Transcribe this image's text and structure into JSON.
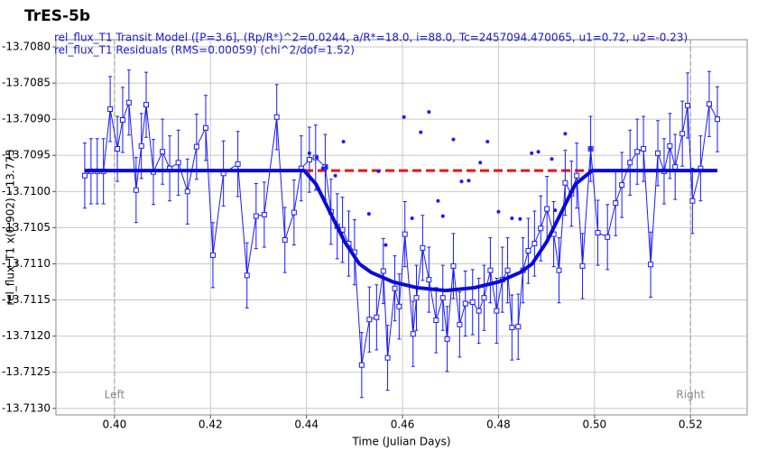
{
  "chart_data": {
    "type": "line",
    "title": "TrES-5b",
    "x_label": "Time (Julian Days)",
    "y_label": "rel_flux_T1 x(0.902) - 13.775",
    "xlim": [
      0.3878,
      0.5318
    ],
    "ylim": [
      -13.71309,
      -13.7079
    ],
    "xticks": [
      {
        "value": 0.4,
        "label": "0.40"
      },
      {
        "value": 0.42,
        "label": "0.42"
      },
      {
        "value": 0.44,
        "label": "0.44"
      },
      {
        "value": 0.46,
        "label": "0.46"
      },
      {
        "value": 0.48,
        "label": "0.48"
      },
      {
        "value": 0.5,
        "label": "0.50"
      },
      {
        "value": 0.52,
        "label": "0.52"
      }
    ],
    "yticks": [
      {
        "value": -13.708,
        "label": "-13.7080"
      },
      {
        "value": -13.7085,
        "label": "-13.7085"
      },
      {
        "value": -13.709,
        "label": "-13.7090"
      },
      {
        "value": -13.7095,
        "label": "-13.7095"
      },
      {
        "value": -13.71,
        "label": "-13.7100"
      },
      {
        "value": -13.7105,
        "label": "-13.7105"
      },
      {
        "value": -13.711,
        "label": "-13.7110"
      },
      {
        "value": -13.7115,
        "label": "-13.7115"
      },
      {
        "value": -13.712,
        "label": "-13.7120"
      },
      {
        "value": -13.7125,
        "label": "-13.7125"
      },
      {
        "value": -13.713,
        "label": "-13.7130"
      }
    ],
    "grid": true,
    "markers": [
      {
        "label": "Left",
        "x": 0.4
      },
      {
        "label": "Right",
        "x": 0.52
      }
    ],
    "series": [
      {
        "style": "points-errorbars",
        "color": "#1a1aff",
        "x": [
          0.3938,
          0.3951,
          0.3964,
          0.3977,
          0.3991,
          0.4006,
          0.4017,
          0.403,
          0.4045,
          0.4056,
          0.4066,
          0.4081,
          0.41,
          0.4115,
          0.4133,
          0.4152,
          0.4171,
          0.419,
          0.4205,
          0.4227,
          0.4257,
          0.4276,
          0.4295,
          0.4312,
          0.4338,
          0.4355,
          0.4374,
          0.4389,
          0.4406,
          0.4419,
          0.4439,
          0.4451,
          0.4464,
          0.4475,
          0.4488,
          0.45,
          0.4515,
          0.4531,
          0.4546,
          0.456,
          0.4569,
          0.4584,
          0.4593,
          0.4605,
          0.4622,
          0.4629,
          0.4642,
          0.4655,
          0.467,
          0.4684,
          0.4693,
          0.4706,
          0.4719,
          0.4731,
          0.4746,
          0.4759,
          0.477,
          0.4783,
          0.4796,
          0.4808,
          0.4819,
          0.4828,
          0.4841,
          0.4851,
          0.4862,
          0.4875,
          0.4888,
          0.4901,
          0.4915,
          0.4926,
          0.4939,
          0.4952,
          0.4963,
          0.4975,
          0.4992,
          0.5007,
          0.5027,
          0.5044,
          0.5057,
          0.5074,
          0.5089,
          0.5102,
          0.5117,
          0.5132,
          0.5145,
          0.5157,
          0.5168,
          0.5183,
          0.5194,
          0.5204,
          0.5221,
          0.5239,
          0.5256
        ],
        "values": [
          -13.70978,
          -13.70972,
          -13.70972,
          -13.70972,
          -13.70886,
          -13.70941,
          -13.70901,
          -13.70877,
          -13.70998,
          -13.70937,
          -13.7088,
          -13.70973,
          -13.70945,
          -13.70968,
          -13.7096,
          -13.71,
          -13.70938,
          -13.70912,
          -13.71088,
          -13.70975,
          -13.70962,
          -13.71116,
          -13.71034,
          -13.71032,
          -13.70897,
          -13.71067,
          -13.71029,
          -13.70968,
          -13.70956,
          -13.70953,
          -13.70966,
          -13.71028,
          -13.71048,
          -13.71053,
          -13.71072,
          -13.71084,
          -13.7124,
          -13.71177,
          -13.71174,
          -13.7111,
          -13.7123,
          -13.71134,
          -13.71159,
          -13.71059,
          -13.71197,
          -13.71147,
          -13.71078,
          -13.71122,
          -13.71178,
          -13.71147,
          -13.71204,
          -13.71103,
          -13.71184,
          -13.71155,
          -13.71153,
          -13.71165,
          -13.71147,
          -13.71109,
          -13.71165,
          -13.71122,
          -13.71109,
          -13.71188,
          -13.71187,
          -13.71109,
          -13.71082,
          -13.71072,
          -13.71051,
          -13.71024,
          -13.71059,
          -13.71109,
          -13.70988,
          -13.71003,
          -13.70978,
          -13.71103,
          -13.70941,
          -13.71057,
          -13.71063,
          -13.71016,
          -13.70991,
          -13.7096,
          -13.70945,
          -13.70941,
          -13.71101,
          -13.70947,
          -13.70972,
          -13.70937,
          -13.70966,
          -13.7092,
          -13.70881,
          -13.71013,
          -13.70968,
          -13.70879,
          -13.709
        ],
        "errors": [
          0.00045,
          0.00045,
          0.00045,
          0.00045,
          0.00045,
          0.00045,
          0.00045,
          0.00045,
          0.00045,
          0.00045,
          0.00045,
          0.00045,
          0.00045,
          0.00045,
          0.00045,
          0.00045,
          0.00045,
          0.00045,
          0.00045,
          0.00045,
          0.00045,
          0.00045,
          0.00045,
          0.00045,
          0.00045,
          0.00045,
          0.00045,
          0.00045,
          0.00045,
          0.00045,
          0.00045,
          0.00045,
          0.00045,
          0.00045,
          0.00045,
          0.00045,
          0.00045,
          0.00045,
          0.00045,
          0.00045,
          0.00045,
          0.00045,
          0.00045,
          0.00045,
          0.00045,
          0.00045,
          0.00045,
          0.00045,
          0.00045,
          0.00045,
          0.00045,
          0.00045,
          0.00045,
          0.00045,
          0.00045,
          0.00045,
          0.00045,
          0.00045,
          0.00045,
          0.00045,
          0.00045,
          0.00045,
          0.00045,
          0.00045,
          0.00045,
          0.00045,
          0.00045,
          0.00045,
          0.00045,
          0.00045,
          0.00045,
          0.00045,
          0.00045,
          0.00045,
          0.00045,
          0.00045,
          0.00045,
          0.00045,
          0.00045,
          0.00045,
          0.00045,
          0.00045,
          0.00045,
          0.00045,
          0.00045,
          0.00045,
          0.00045,
          0.00045,
          0.00045,
          0.00045,
          0.00045,
          0.00045,
          0.00045
        ]
      },
      {
        "name": "rel_flux_T1 Transit Model ([P=3.6], (Rp/R*)^2=0.0244, a/R*=18.0, i=88.0, Tc=2457094.470065, u1=0.72, u2=-0.23)",
        "style": "thick-line",
        "color": "#0a0ad8",
        "x": [
          0.3938,
          0.4395,
          0.442,
          0.445,
          0.448,
          0.451,
          0.4535,
          0.458,
          0.463,
          0.469,
          0.475,
          0.48,
          0.4845,
          0.487,
          0.49,
          0.493,
          0.496,
          0.4995,
          0.5256
        ],
        "values": [
          -13.70971,
          -13.70971,
          -13.7099,
          -13.7103,
          -13.7107,
          -13.711,
          -13.71112,
          -13.71125,
          -13.71133,
          -13.71137,
          -13.71133,
          -13.71125,
          -13.71112,
          -13.711,
          -13.7107,
          -13.7103,
          -13.7099,
          -13.70971,
          -13.70971
        ]
      },
      {
        "style": "dashed-line",
        "color": "#ee1111",
        "x": [
          0.4395,
          0.5256
        ],
        "values": [
          -13.70971,
          -13.70971
        ]
      },
      {
        "name": "rel_flux_T1 Residuals (RMS=0.00059) (chi^2/dof=1.52)",
        "style": "dots",
        "color": "#1a1aff",
        "x": [
          0.4406,
          0.4421,
          0.4434,
          0.4441,
          0.446,
          0.4477,
          0.453,
          0.455,
          0.4565,
          0.4603,
          0.462,
          0.4638,
          0.4655,
          0.4674,
          0.4684,
          0.4706,
          0.4723,
          0.4738,
          0.4762,
          0.4777,
          0.48,
          0.4828,
          0.4845,
          0.4869,
          0.4883,
          0.4911,
          0.4918,
          0.4939,
          0.4992
        ],
        "values": [
          -13.70947,
          -13.70953,
          -13.70968,
          -13.70966,
          -13.70978,
          -13.70931,
          -13.71031,
          -13.70972,
          -13.71074,
          -13.70897,
          -13.71037,
          -13.70918,
          -13.7089,
          -13.71013,
          -13.71034,
          -13.70928,
          -13.70986,
          -13.70985,
          -13.7096,
          -13.70931,
          -13.71028,
          -13.71037,
          -13.71038,
          -13.70947,
          -13.70945,
          -13.70955,
          -13.71026,
          -13.7092,
          -13.70941
        ]
      }
    ]
  }
}
